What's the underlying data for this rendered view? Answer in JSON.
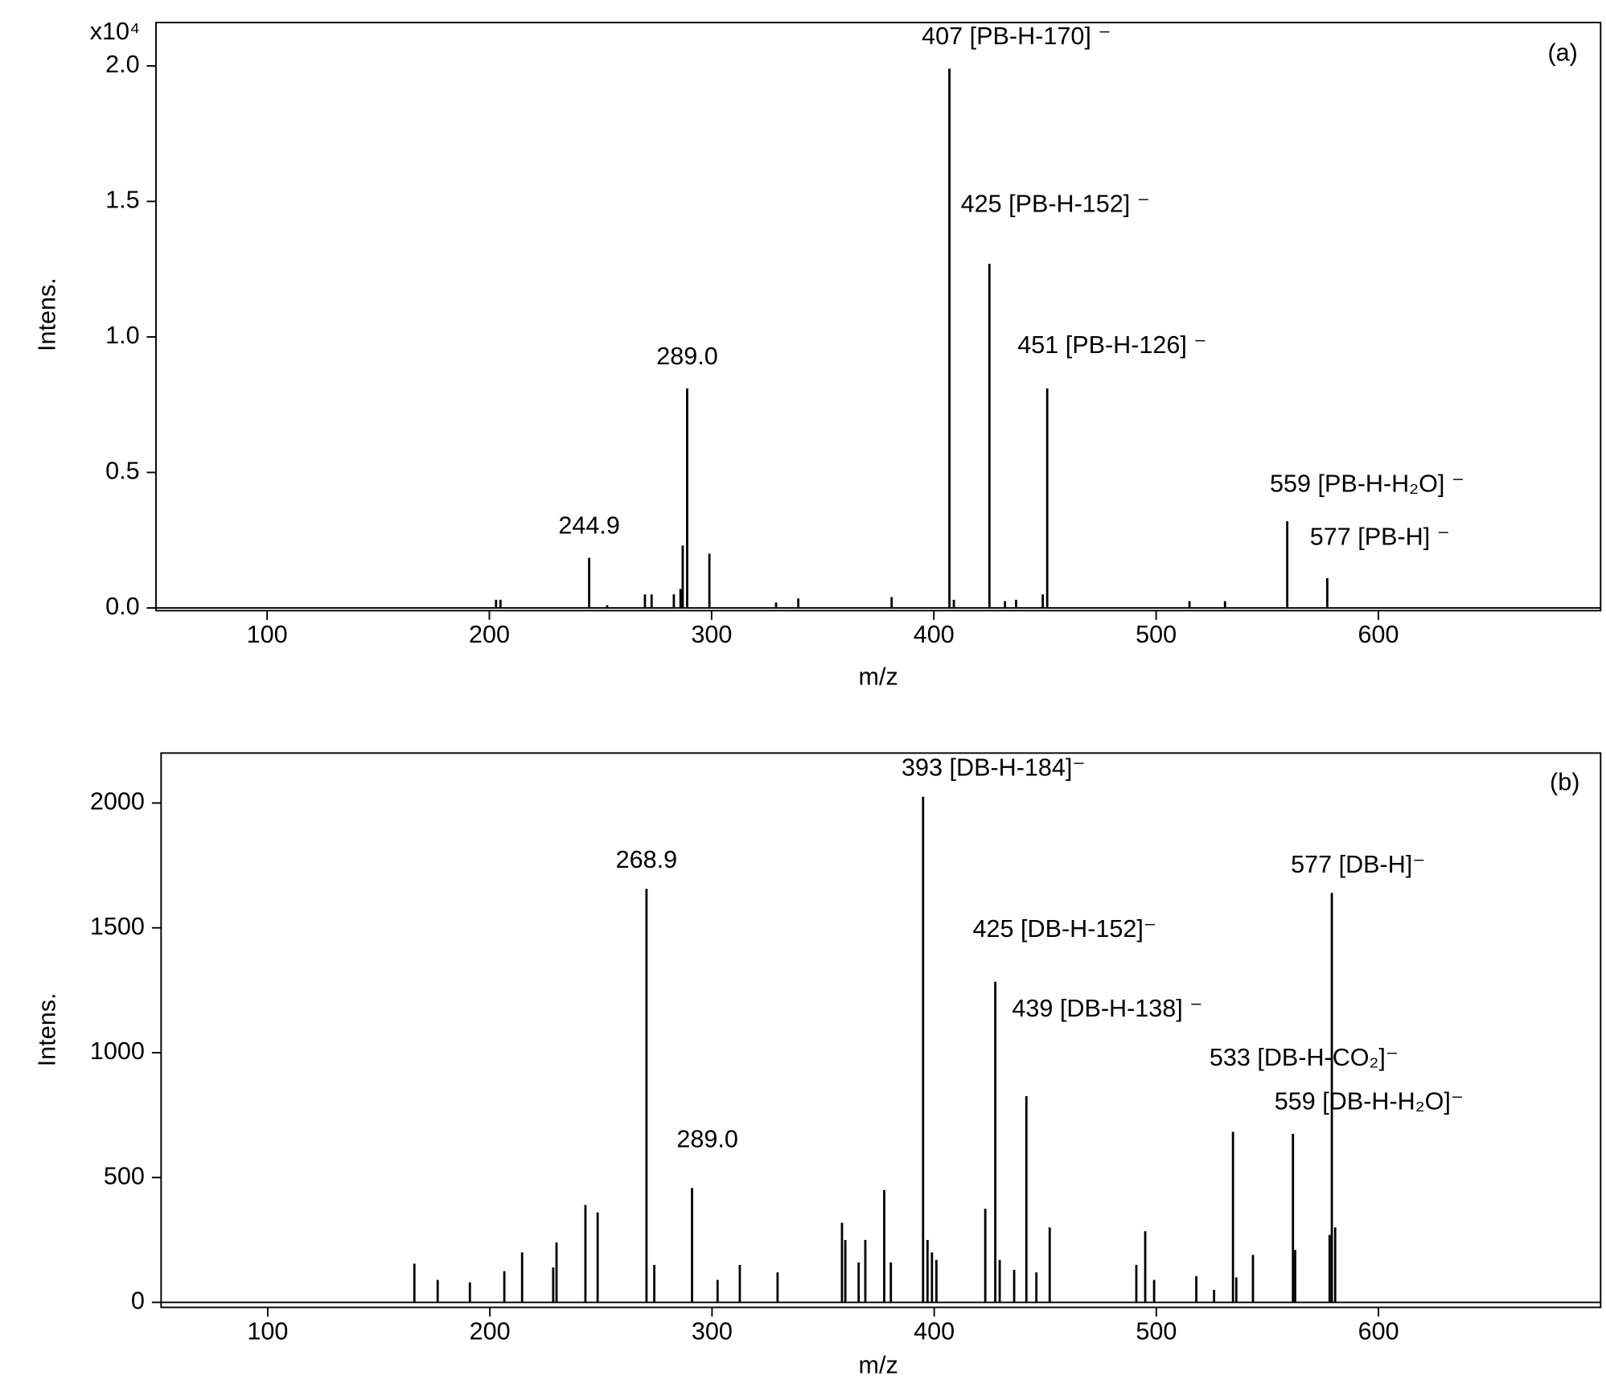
{
  "chart_data": [
    {
      "type": "stem",
      "panel_label": "(a)",
      "y_multiplier": "x10⁴",
      "xlabel": "m/z",
      "ylabel": "Intens.",
      "color": "#000000",
      "xlim": [
        50,
        700
      ],
      "xticks": [
        100,
        200,
        300,
        400,
        500,
        600
      ],
      "ylim": [
        -0.01,
        2.16
      ],
      "yticks": [
        {
          "value": 0,
          "label": "0.0"
        },
        0.5,
        {
          "value": 1,
          "label": "1.0"
        },
        1.5,
        {
          "value": 2,
          "label": "2.0"
        }
      ],
      "x": [
        203,
        205,
        244.9,
        253,
        270,
        273,
        283,
        286,
        287,
        289,
        299,
        329,
        339,
        381,
        407,
        409,
        425,
        432,
        437,
        449,
        451,
        515,
        531,
        559,
        577
      ],
      "values": [
        0.03,
        0.03,
        0.185,
        0.01,
        0.05,
        0.05,
        0.05,
        0.07,
        0.23,
        0.81,
        0.2,
        0.02,
        0.035,
        0.04,
        1.99,
        0.03,
        1.27,
        0.025,
        0.03,
        0.05,
        0.81,
        0.025,
        0.025,
        0.32,
        0.11
      ],
      "labels": [
        null,
        null,
        "244.9",
        null,
        null,
        null,
        null,
        null,
        null,
        "289.0",
        null,
        null,
        null,
        null,
        "407 [PB-H-170] ⁻",
        null,
        "425 [PB-H-152] ⁻",
        null,
        null,
        null,
        "451 [PB-H-126] ⁻",
        null,
        null,
        "559 [PB-H-H₂O] ⁻",
        "577 [PB-H] ⁻"
      ]
    },
    {
      "type": "stem",
      "panel_label": "(b)",
      "xlabel": "m/z",
      "ylabel": "Intens.",
      "color": "#000000",
      "xlim": [
        52,
        700
      ],
      "xticks": [
        100,
        200,
        300,
        400,
        500,
        600
      ],
      "ylim": [
        -20,
        2200
      ],
      "yticks": [
        0,
        500,
        1000,
        1500,
        2000
      ],
      "x": [
        166,
        176.5,
        191,
        206.5,
        214.5,
        228.5,
        230,
        243,
        248.5,
        270.5,
        274,
        291,
        302.5,
        312.5,
        329.5,
        358.5,
        360,
        366,
        369,
        377.5,
        380.5,
        395,
        397,
        399,
        401,
        423,
        427.5,
        429.5,
        436,
        441.5,
        446,
        452,
        491,
        495,
        499,
        518,
        526,
        534.5,
        536,
        543.5,
        561.5,
        562.5,
        578,
        579,
        580.5
      ],
      "values": [
        155,
        90,
        80,
        125,
        200,
        140,
        240,
        390,
        360,
        1656,
        150,
        458,
        90,
        150,
        120,
        319,
        250,
        160,
        250,
        450,
        160,
        2025,
        250,
        200,
        170,
        375,
        1284,
        170,
        130,
        826,
        120,
        300,
        150,
        285,
        90,
        105,
        50,
        683,
        100,
        190,
        675,
        210,
        270,
        1640,
        300
      ],
      "labels": [
        null,
        null,
        null,
        null,
        null,
        null,
        null,
        null,
        null,
        "268.9",
        null,
        "289.0",
        null,
        null,
        null,
        null,
        null,
        null,
        null,
        null,
        null,
        "393 [DB-H-184]⁻",
        null,
        null,
        null,
        null,
        "425 [DB-H-152]⁻",
        null,
        null,
        "439 [DB-H-138] ⁻",
        null,
        null,
        null,
        null,
        null,
        null,
        null,
        "533 [DB-H-CO₂]⁻",
        null,
        null,
        "559 [DB-H-H₂O]⁻",
        null,
        null,
        "577 [DB-H]⁻",
        null
      ]
    }
  ]
}
